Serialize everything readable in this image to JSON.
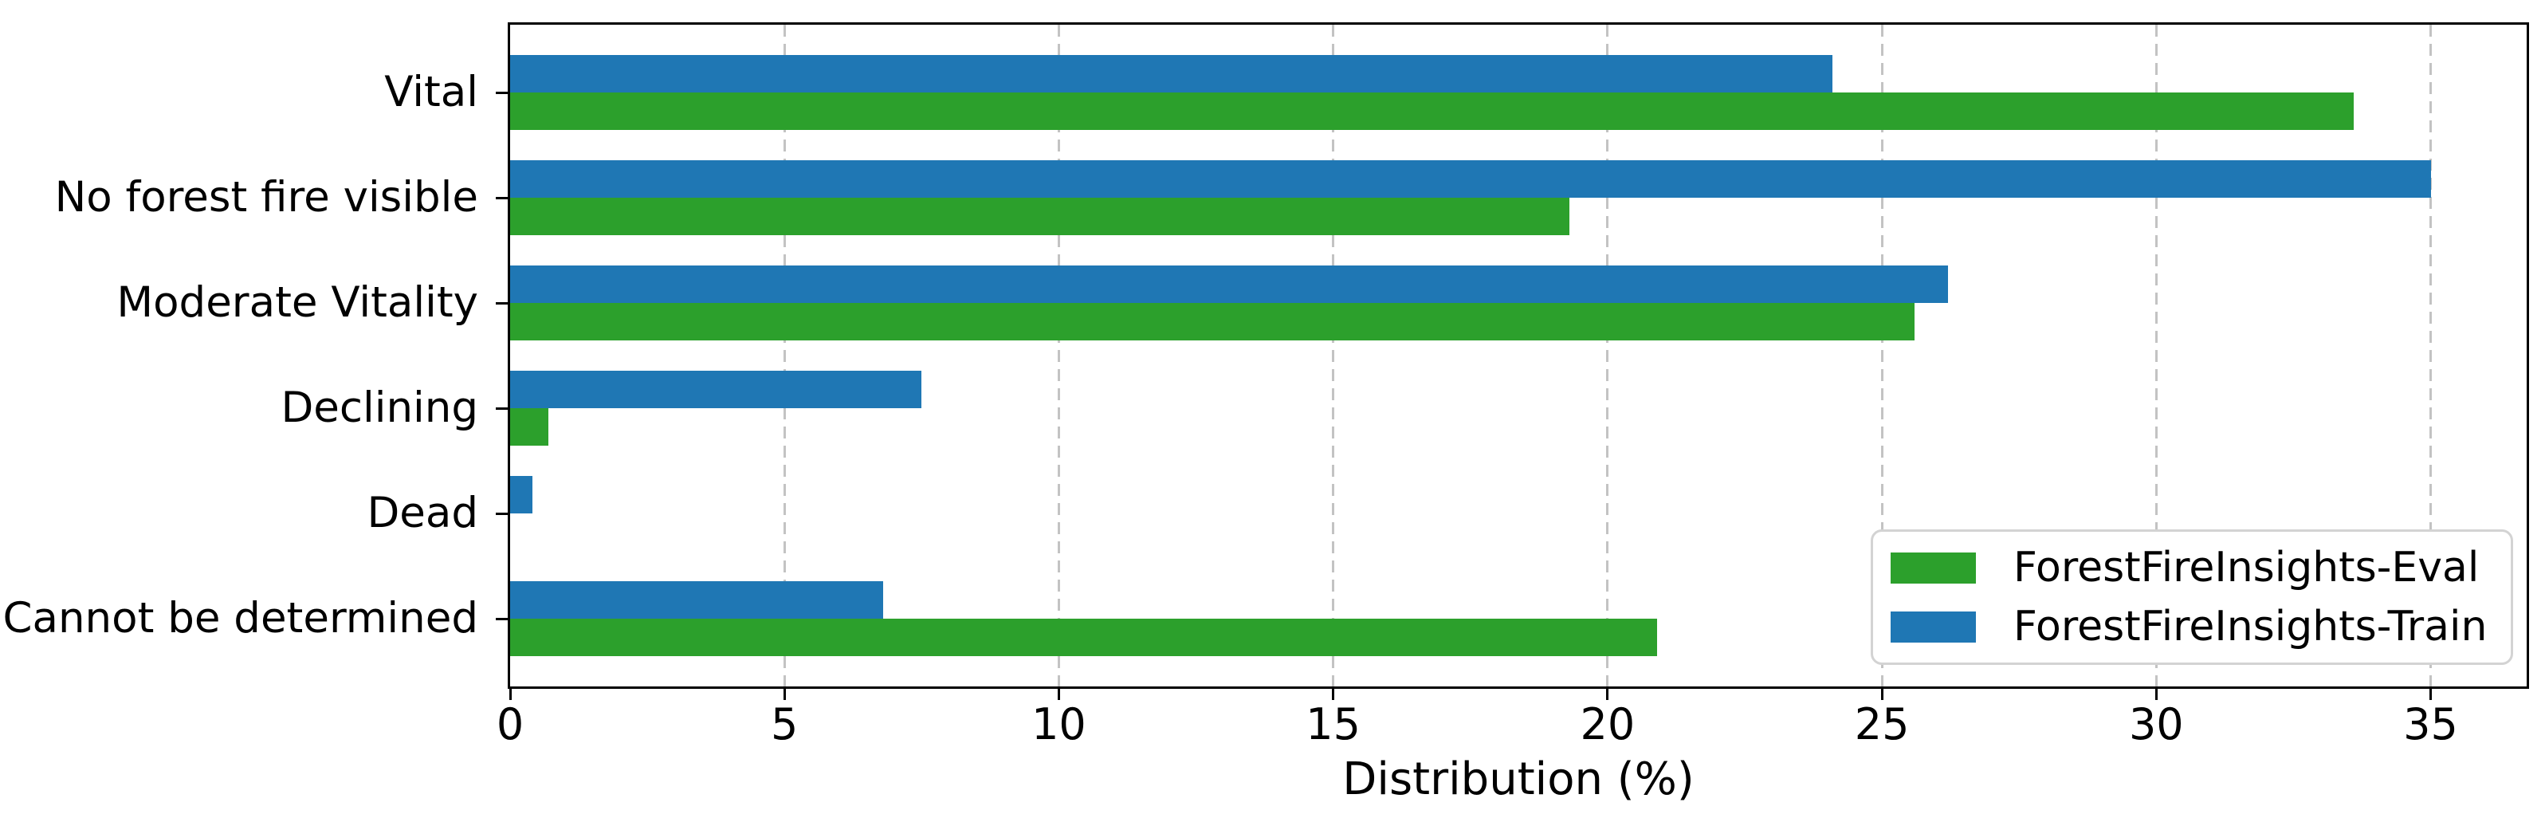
{
  "chart_data": {
    "type": "bar",
    "orientation": "horizontal",
    "title": "",
    "xlabel": "Distribution (%)",
    "ylabel": "",
    "categories": [
      "Vital",
      "No forest fire visible",
      "Moderate Vitality",
      "Declining",
      "Dead",
      "Cannot be determined"
    ],
    "series": [
      {
        "name": "ForestFireInsights-Eval",
        "color": "#2ca02c",
        "values": [
          33.6,
          19.3,
          25.6,
          0.7,
          0.0,
          20.9
        ]
      },
      {
        "name": "ForestFireInsights-Train",
        "color": "#1f77b4",
        "values": [
          24.1,
          35.0,
          26.2,
          7.5,
          0.4,
          6.8
        ]
      }
    ],
    "xlim": [
      0,
      36.75
    ],
    "xticks": [
      0,
      5,
      10,
      15,
      20,
      25,
      30,
      35
    ],
    "grid": "vertical-dashed",
    "grid_color": "#c3c3c3",
    "legend_position": "lower right",
    "axis_color": "#000000"
  }
}
